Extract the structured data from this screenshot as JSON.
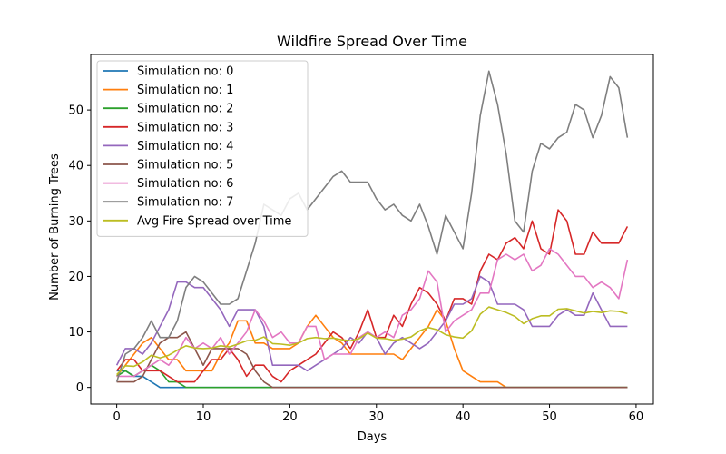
{
  "chart_data": {
    "type": "line",
    "title": "Wildfire Spread Over Time",
    "xlabel": "Days",
    "ylabel": "Number of Burning Trees",
    "xlim": [
      -3,
      62
    ],
    "ylim": [
      -3,
      60
    ],
    "xticks": [
      0,
      10,
      20,
      30,
      40,
      50,
      60
    ],
    "yticks": [
      0,
      10,
      20,
      30,
      40,
      50
    ],
    "grid": false,
    "legend_position": "top-left",
    "x": [
      0,
      1,
      2,
      3,
      4,
      5,
      6,
      7,
      8,
      9,
      10,
      11,
      12,
      13,
      14,
      15,
      16,
      17,
      18,
      19,
      20,
      21,
      22,
      23,
      24,
      25,
      26,
      27,
      28,
      29,
      30,
      31,
      32,
      33,
      34,
      35,
      36,
      37,
      38,
      39,
      40,
      41,
      42,
      43,
      44,
      45,
      46,
      47,
      48,
      49,
      50,
      51,
      52,
      53,
      54,
      55,
      56,
      57,
      58,
      59
    ],
    "series": [
      {
        "name": "Simulation no: 0",
        "color": "#1f77b4",
        "values": [
          3,
          3,
          2,
          2,
          1,
          0,
          0,
          0,
          0,
          0,
          0,
          0,
          0,
          0,
          0,
          0,
          0,
          0,
          0,
          0,
          0,
          0,
          0,
          0,
          0,
          0,
          0,
          0,
          0,
          0,
          0,
          0,
          0,
          0,
          0,
          0,
          0,
          0,
          0,
          0,
          0,
          0,
          0,
          0,
          0,
          0,
          0,
          0,
          0,
          0,
          0,
          0,
          0,
          0,
          0,
          0,
          0,
          0,
          0,
          0
        ]
      },
      {
        "name": "Simulation no: 1",
        "color": "#ff7f0e",
        "values": [
          2,
          4,
          6,
          8,
          9,
          7,
          5,
          5,
          3,
          3,
          3,
          3,
          6,
          8,
          12,
          12,
          8,
          8,
          7,
          7,
          7,
          8,
          11,
          13,
          11,
          9,
          8,
          6,
          6,
          6,
          6,
          6,
          6,
          5,
          7,
          9,
          11,
          14,
          12,
          7,
          3,
          2,
          1,
          1,
          1,
          0,
          0,
          0,
          0,
          0,
          0,
          0,
          0,
          0,
          0,
          0,
          0,
          0,
          0,
          0
        ]
      },
      {
        "name": "Simulation no: 2",
        "color": "#2ca02c",
        "values": [
          2,
          3,
          2,
          3,
          4,
          3,
          1,
          1,
          0,
          0,
          0,
          0,
          0,
          0,
          0,
          0,
          0,
          0,
          0,
          0,
          0,
          0,
          0,
          0,
          0,
          0,
          0,
          0,
          0,
          0,
          0,
          0,
          0,
          0,
          0,
          0,
          0,
          0,
          0,
          0,
          0,
          0,
          0,
          0,
          0,
          0,
          0,
          0,
          0,
          0,
          0,
          0,
          0,
          0,
          0,
          0,
          0,
          0,
          0,
          0
        ]
      },
      {
        "name": "Simulation no: 3",
        "color": "#d62728",
        "values": [
          3,
          5,
          5,
          3,
          3,
          3,
          2,
          1,
          1,
          1,
          3,
          5,
          5,
          7,
          5,
          2,
          4,
          4,
          2,
          1,
          3,
          4,
          5,
          6,
          8,
          10,
          9,
          7,
          10,
          14,
          9,
          9,
          13,
          11,
          15,
          18,
          17,
          15,
          12,
          16,
          16,
          15,
          21,
          24,
          23,
          26,
          27,
          25,
          30,
          25,
          24,
          32,
          30,
          24,
          24,
          28,
          26,
          26,
          26,
          29
        ]
      },
      {
        "name": "Simulation no: 4",
        "color": "#9467bd",
        "values": [
          4,
          7,
          7,
          6,
          8,
          11,
          14,
          19,
          19,
          18,
          18,
          16,
          14,
          11,
          14,
          14,
          14,
          11,
          4,
          4,
          4,
          4,
          3,
          4,
          5,
          6,
          7,
          9,
          8,
          10,
          9,
          6,
          8,
          9,
          8,
          7,
          8,
          10,
          12,
          15,
          15,
          16,
          20,
          19,
          15,
          15,
          15,
          14,
          11,
          11,
          11,
          13,
          14,
          13,
          13,
          17,
          14,
          11,
          11,
          11
        ]
      },
      {
        "name": "Simulation no: 5",
        "color": "#8c564b",
        "values": [
          1,
          1,
          1,
          2,
          5,
          8,
          9,
          9,
          10,
          7,
          4,
          7,
          7,
          7,
          7,
          6,
          3,
          1,
          0,
          0,
          0,
          0,
          0,
          0,
          0,
          0,
          0,
          0,
          0,
          0,
          0,
          0,
          0,
          0,
          0,
          0,
          0,
          0,
          0,
          0,
          0,
          0,
          0,
          0,
          0,
          0,
          0,
          0,
          0,
          0,
          0,
          0,
          0,
          0,
          0,
          0,
          0,
          0,
          0,
          0
        ]
      },
      {
        "name": "Simulation no: 6",
        "color": "#e377c2",
        "values": [
          2,
          2,
          2,
          3,
          4,
          5,
          4,
          6,
          9,
          7,
          8,
          7,
          9,
          6,
          8,
          10,
          14,
          12,
          9,
          10,
          8,
          8,
          11,
          11,
          5,
          6,
          6,
          6,
          9,
          10,
          9,
          10,
          9,
          13,
          14,
          16,
          21,
          19,
          10,
          12,
          13,
          14,
          17,
          17,
          23,
          24,
          23,
          24,
          21,
          22,
          25,
          24,
          22,
          20,
          20,
          18,
          19,
          18,
          16,
          23
        ]
      },
      {
        "name": "Simulation no: 7",
        "color": "#7f7f7f",
        "values": [
          1,
          6,
          7,
          9,
          12,
          9,
          9,
          12,
          18,
          20,
          19,
          17,
          15,
          15,
          16,
          21,
          26,
          33,
          32,
          31,
          34,
          35,
          32,
          34,
          36,
          38,
          39,
          37,
          37,
          37,
          34,
          32,
          33,
          31,
          30,
          33,
          29,
          24,
          31,
          28,
          25,
          35,
          49,
          57,
          51,
          42,
          30,
          28,
          39,
          44,
          43,
          45,
          46,
          51,
          50,
          45,
          49,
          56,
          54,
          45
        ]
      },
      {
        "name": "Avg Fire Spread over Time",
        "color": "#bcbd22",
        "values": [
          2.3,
          3.9,
          3.8,
          4.6,
          5.8,
          5.3,
          5.8,
          6.7,
          7.5,
          7.1,
          7.0,
          7.1,
          7.5,
          7.3,
          7.8,
          8.4,
          8.5,
          9.1,
          7.9,
          7.8,
          7.6,
          8.0,
          8.8,
          9.0,
          8.8,
          8.9,
          8.6,
          8.4,
          8.8,
          9.8,
          8.9,
          8.8,
          8.5,
          8.7,
          9.1,
          10.2,
          10.8,
          10.4,
          9.5,
          9.1,
          8.9,
          10.2,
          13.2,
          14.5,
          14.0,
          13.5,
          12.8,
          11.5,
          12.4,
          12.9,
          12.9,
          14.1,
          14.2,
          13.8,
          13.4,
          13.7,
          13.5,
          13.8,
          13.7,
          13.3
        ]
      }
    ]
  }
}
